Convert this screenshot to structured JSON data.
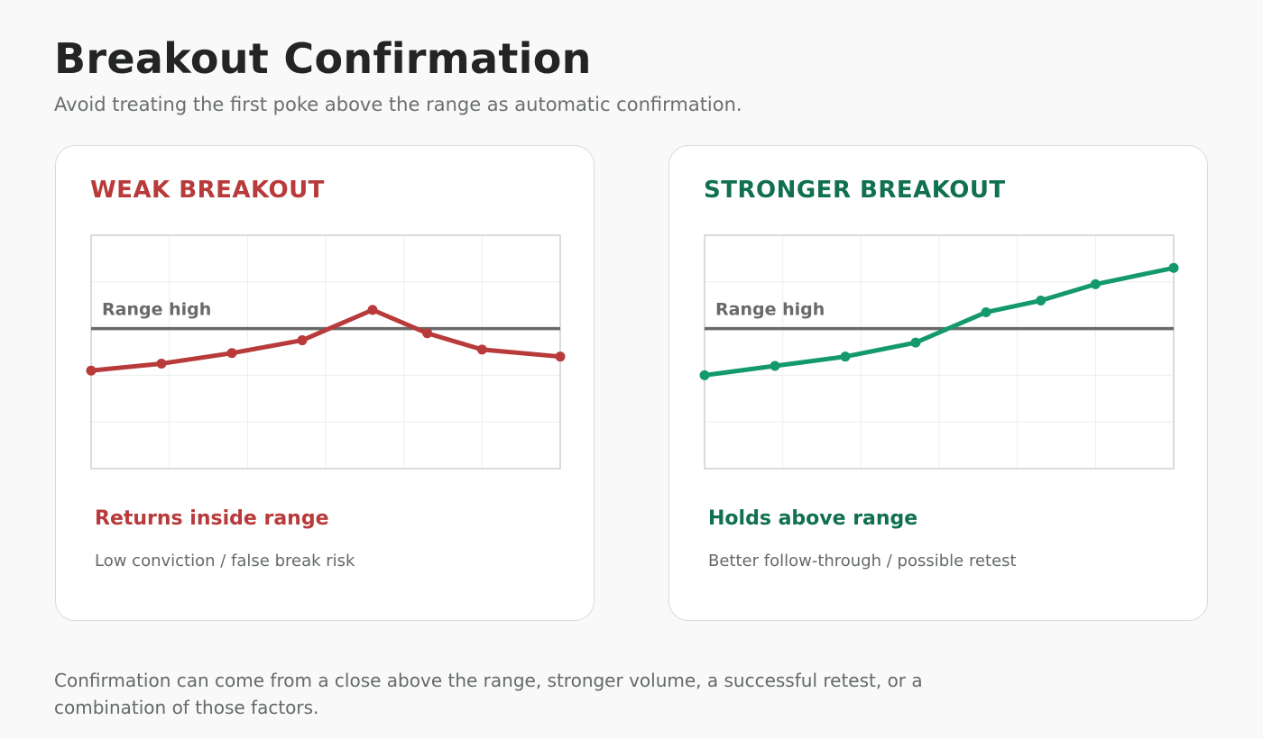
{
  "header": {
    "title": "Breakout Confirmation",
    "subtitle": "Avoid treating the first poke above the range as automatic confirmation."
  },
  "chart_data": [
    {
      "type": "line",
      "title": "WEAK BREAKOUT",
      "title_color": "#b83a3a",
      "line_color": "#b83a3a",
      "reference_line": {
        "label": "Range high",
        "y": 60
      },
      "ylim": [
        0,
        100
      ],
      "xlim": [
        0,
        6
      ],
      "grid": true,
      "series": [
        {
          "x": [
            0,
            0.9,
            1.8,
            2.7,
            3.6,
            4.3,
            5.0,
            6.0
          ],
          "values": [
            42,
            45,
            49.5,
            55,
            68,
            58,
            51,
            48
          ]
        }
      ],
      "verdict": "Returns inside range",
      "verdict_detail": "Low conviction / false break risk"
    },
    {
      "type": "line",
      "title": "STRONGER BREAKOUT",
      "title_color": "#107050",
      "line_color": "#149a6a",
      "reference_line": {
        "label": "Range high",
        "y": 60
      },
      "ylim": [
        0,
        100
      ],
      "xlim": [
        0,
        6
      ],
      "grid": true,
      "series": [
        {
          "x": [
            0,
            0.9,
            1.8,
            2.7,
            3.6,
            4.3,
            5.0,
            6.0
          ],
          "values": [
            40,
            44,
            48,
            54,
            67,
            72,
            79,
            86
          ]
        }
      ],
      "verdict": "Holds above range",
      "verdict_detail": "Better follow-through / possible retest"
    }
  ],
  "footer": {
    "text": "Confirmation can come from a close above the range, stronger volume, a successful retest, or a combination of those factors."
  }
}
